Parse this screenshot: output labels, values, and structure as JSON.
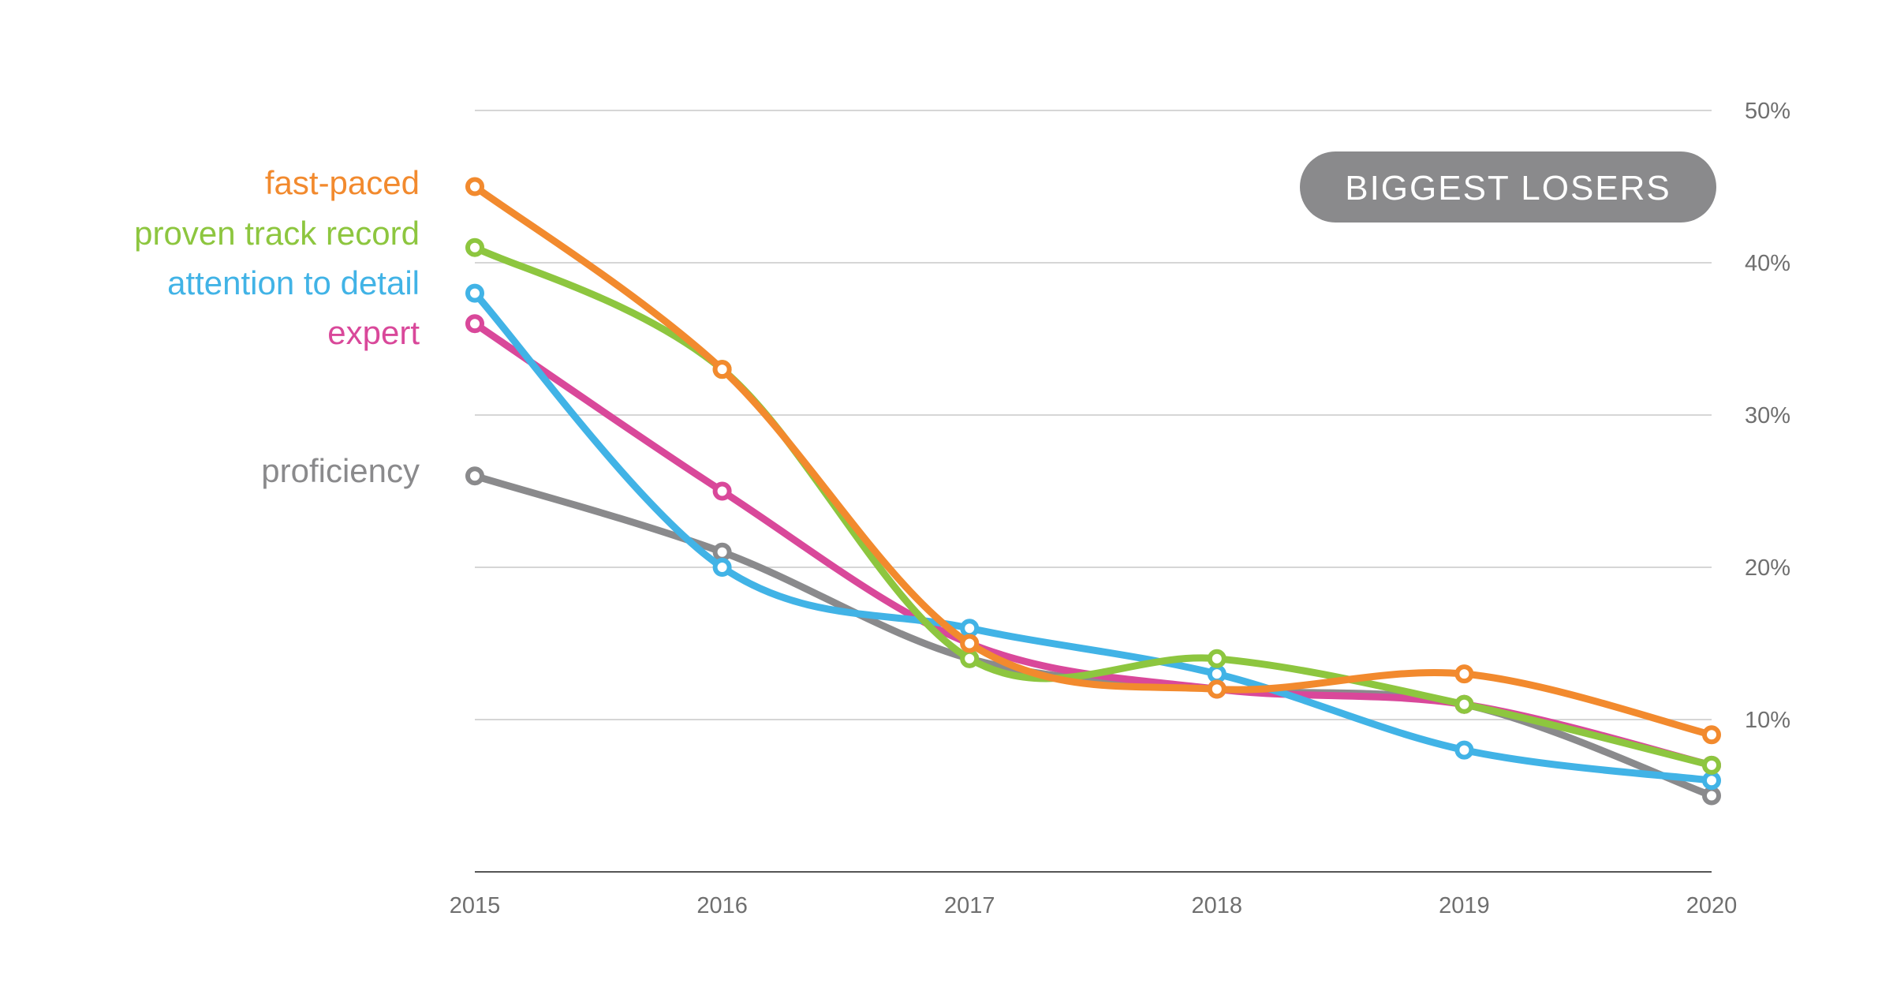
{
  "chart_data": {
    "type": "line",
    "title": "",
    "badge": "BIGGEST LOSERS",
    "x": [
      "2015",
      "2016",
      "2017",
      "2018",
      "2019",
      "2020"
    ],
    "y_ticks": [
      "10%",
      "20%",
      "30%",
      "40%",
      "50%"
    ],
    "y_tick_values": [
      10,
      20,
      30,
      40,
      50
    ],
    "ylim": [
      0,
      50
    ],
    "y_axis_side": "right",
    "grid": true,
    "legend_position": "left",
    "series": [
      {
        "name": "proficiency",
        "color": "#8a8a8c",
        "values": [
          26,
          21,
          14,
          12,
          11,
          5
        ]
      },
      {
        "name": "expert",
        "color": "#d9489a",
        "values": [
          36,
          25,
          15,
          12,
          11,
          7
        ]
      },
      {
        "name": "attention to detail",
        "color": "#41b3e6",
        "values": [
          38,
          20,
          16,
          13,
          8,
          6
        ]
      },
      {
        "name": "proven track record",
        "color": "#8dc63f",
        "values": [
          41,
          33,
          14,
          14,
          11,
          7
        ]
      },
      {
        "name": "fast-paced",
        "color": "#f28a2e",
        "values": [
          45,
          33,
          15,
          12,
          13,
          9
        ]
      }
    ],
    "colors": {
      "grid": "#d6d6d6",
      "axis": "#555555",
      "badge_bg": "#8a8a8c",
      "tick_text": "#6f6f6f"
    }
  }
}
